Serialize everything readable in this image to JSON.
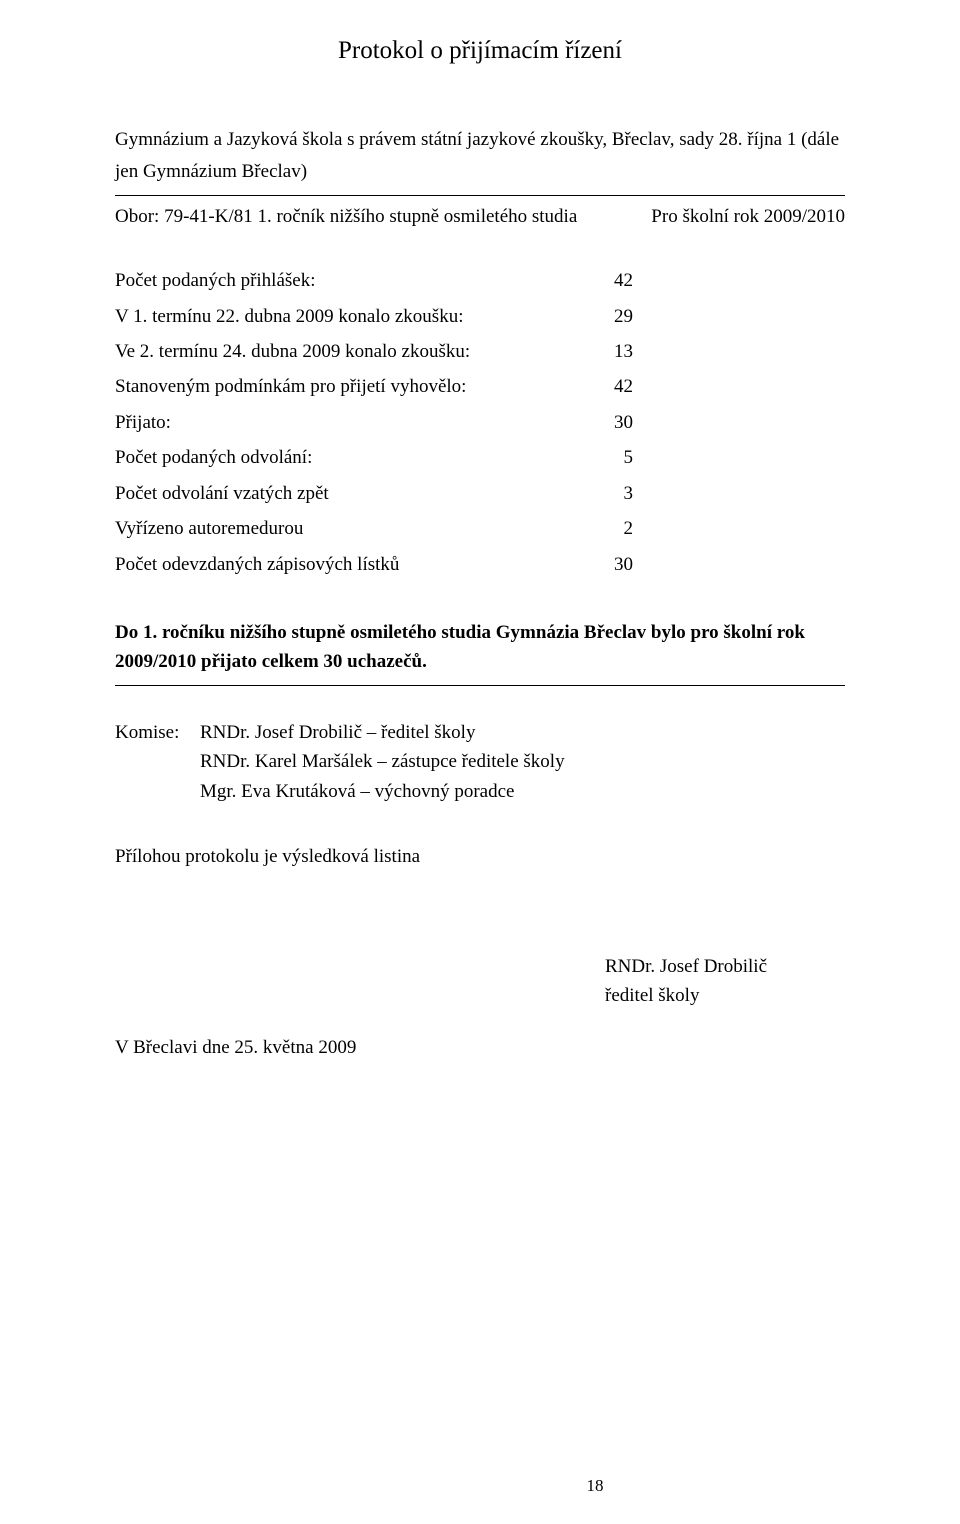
{
  "title": "Protokol o přijímacím řízení",
  "intro_line1": "Gymnázium a Jazyková škola s právem státní jazykové zkoušky, Břeclav, sady 28. října 1 (dále",
  "intro_line2": "jen Gymnázium Břeclav)",
  "obor_left": "Obor: 79-41-K/81 1. ročník nižšího stupně osmiletého studia",
  "obor_right": "Pro školní rok 2009/2010",
  "stats": {
    "rows": [
      {
        "label": "Počet podaných přihlášek:",
        "value": "42"
      },
      {
        "label": "V 1. termínu 22. dubna 2009 konalo zkoušku:",
        "value": "29"
      },
      {
        "label": "Ve 2. termínu 24. dubna 2009 konalo zkoušku:",
        "value": "13"
      },
      {
        "label": "Stanoveným podmínkám pro přijetí vyhovělo:",
        "value": "42"
      },
      {
        "label": "Přijato:",
        "value": "30"
      },
      {
        "label": "Počet podaných odvolání:",
        "value": "5"
      },
      {
        "label": "Počet odvolání vzatých zpět",
        "value": "3"
      },
      {
        "label": "Vyřízeno autoremedurou",
        "value": "2"
      },
      {
        "label": "Počet odevzdaných zápisových lístků",
        "value": "30"
      }
    ]
  },
  "bold_para": "Do 1. ročníku nižšího stupně osmiletého studia Gymnázia Břeclav bylo pro školní rok 2009/2010 přijato celkem 30 uchazečů.",
  "komise_label": "Komise:",
  "komise_names": [
    "RNDr. Josef Drobilič – ředitel školy",
    "RNDr. Karel Maršálek – zástupce ředitele školy",
    "Mgr. Eva Krutáková – výchovný poradce"
  ],
  "priloha": "Přílohou protokolu je výsledková listina",
  "signature_name": "RNDr. Josef Drobilič",
  "signature_role": "ředitel školy",
  "place_date": "V Břeclavi dne 25. května 2009",
  "page_number": "18"
}
